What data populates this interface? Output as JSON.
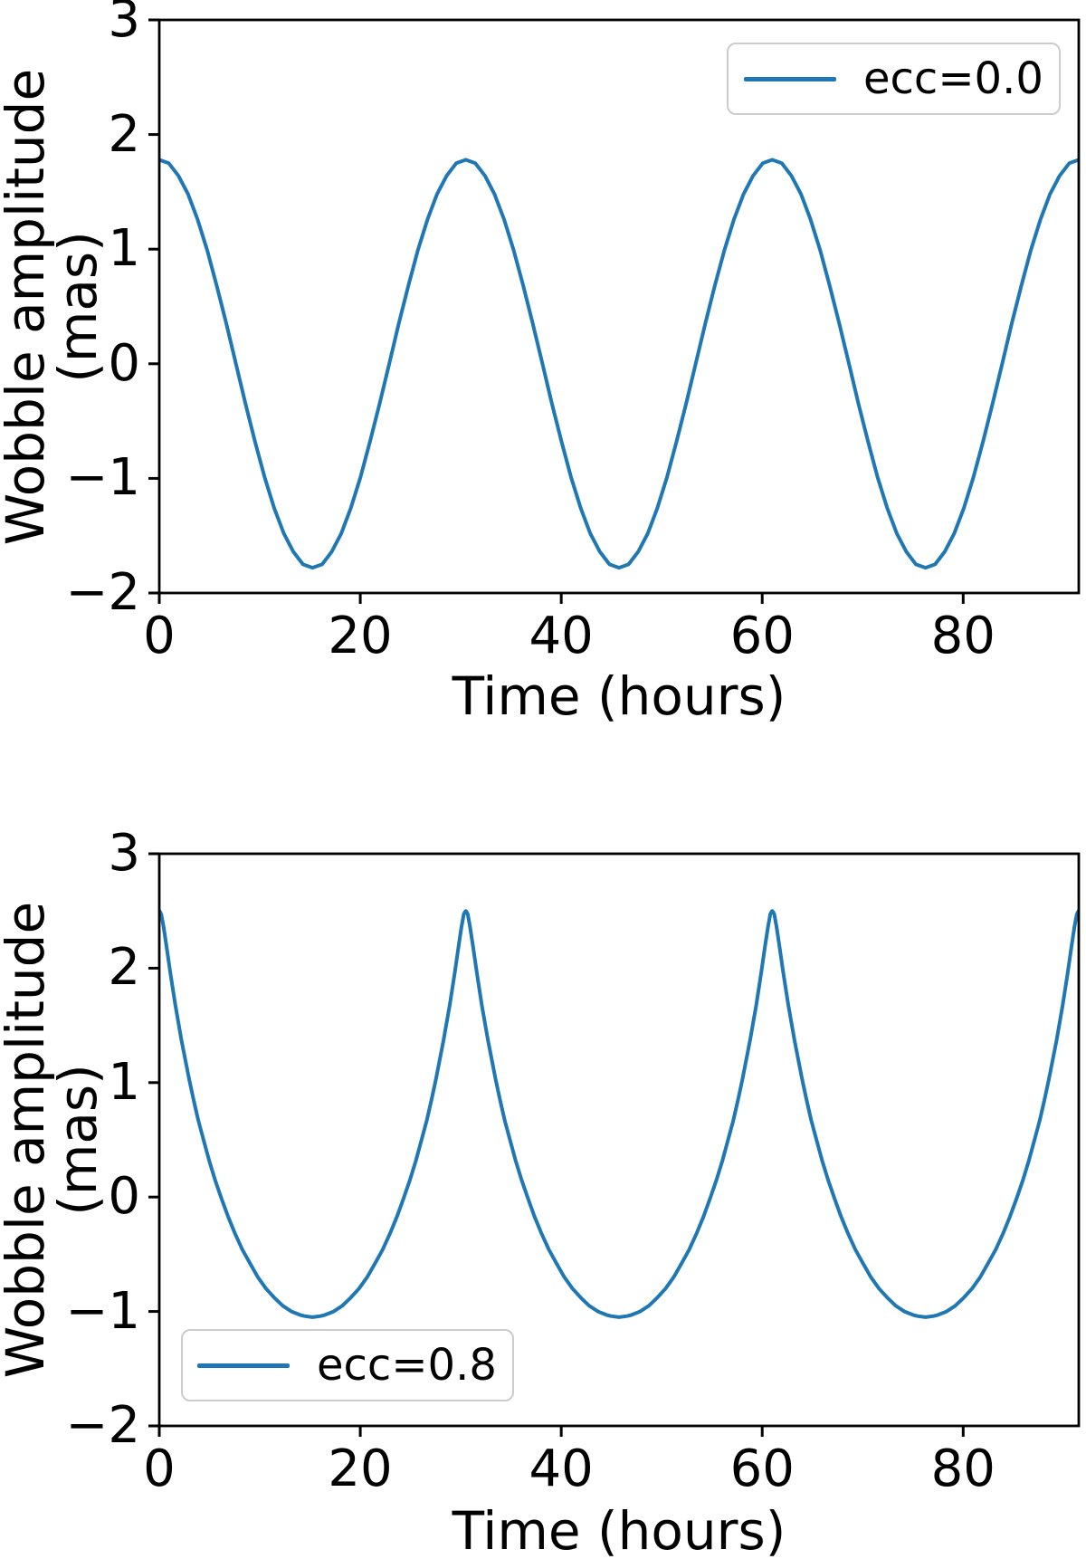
{
  "figure": {
    "background_color": "#ffffff",
    "axis_color": "#000000",
    "accent_color": "#1f77b4"
  },
  "chart_data": [
    {
      "type": "line",
      "panel": "top",
      "title": "",
      "xlabel": "Time (hours)",
      "ylabel": "Wobble amplitude (mas)",
      "xlim": [
        0,
        91.5
      ],
      "ylim": [
        -2,
        3
      ],
      "xticks": [
        0,
        20,
        40,
        60,
        80
      ],
      "yticks": [
        3,
        2,
        1,
        0,
        -1,
        -2
      ],
      "grid": false,
      "legend_position": "upper right",
      "series": [
        {
          "name": "ecc=0.0",
          "color": "#1f77b4",
          "line_width": 4,
          "eccentricity": 0.0,
          "amplitude_mas": 1.78,
          "period_hours": 30.5,
          "period_starts": [
            0,
            30.5,
            61
          ],
          "profile_points": [
            [
              0,
              1.78
            ],
            [
              0.95,
              1.75
            ],
            [
              1.91,
              1.64
            ],
            [
              2.86,
              1.48
            ],
            [
              3.81,
              1.26
            ],
            [
              4.77,
              0.99
            ],
            [
              5.72,
              0.68
            ],
            [
              6.67,
              0.35
            ],
            [
              7.63,
              0.0
            ],
            [
              8.58,
              -0.35
            ],
            [
              9.53,
              -0.68
            ],
            [
              10.48,
              -0.99
            ],
            [
              11.44,
              -1.26
            ],
            [
              12.39,
              -1.48
            ],
            [
              13.34,
              -1.64
            ],
            [
              14.3,
              -1.75
            ],
            [
              15.25,
              -1.78
            ],
            [
              16.2,
              -1.75
            ],
            [
              17.16,
              -1.64
            ],
            [
              18.11,
              -1.48
            ],
            [
              19.06,
              -1.26
            ],
            [
              20.02,
              -0.99
            ],
            [
              20.97,
              -0.68
            ],
            [
              21.92,
              -0.35
            ],
            [
              22.88,
              0.0
            ],
            [
              23.83,
              0.35
            ],
            [
              24.78,
              0.68
            ],
            [
              25.73,
              0.99
            ],
            [
              26.69,
              1.26
            ],
            [
              27.64,
              1.48
            ],
            [
              28.59,
              1.64
            ],
            [
              29.55,
              1.75
            ]
          ],
          "closing_point": [
            91.5,
            1.78
          ]
        }
      ]
    },
    {
      "type": "line",
      "panel": "bottom",
      "title": "",
      "xlabel": "Time (hours)",
      "ylabel": "Wobble amplitude (mas)",
      "xlim": [
        0,
        91.5
      ],
      "ylim": [
        -2,
        3
      ],
      "xticks": [
        0,
        20,
        40,
        60,
        80
      ],
      "yticks": [
        3,
        2,
        1,
        0,
        -1,
        -2
      ],
      "grid": false,
      "legend_position": "lower left",
      "series": [
        {
          "name": "ecc=0.8",
          "color": "#1f77b4",
          "line_width": 4,
          "eccentricity": 0.8,
          "max_mas": 2.5,
          "min_mas": -1.05,
          "period_hours": 30.5,
          "period_starts": [
            0,
            30.5,
            61
          ],
          "profile_points": [
            [
              0,
              2.5
            ],
            [
              0.1,
              2.49
            ],
            [
              0.2,
              2.47
            ],
            [
              0.43,
              2.36
            ],
            [
              0.72,
              2.19
            ],
            [
              1.1,
              1.96
            ],
            [
              1.59,
              1.68
            ],
            [
              2.21,
              1.37
            ],
            [
              2.97,
              1.03
            ],
            [
              3.41,
              0.85
            ],
            [
              3.88,
              0.67
            ],
            [
              4.4,
              0.5
            ],
            [
              4.96,
              0.32
            ],
            [
              5.55,
              0.15
            ],
            [
              6.18,
              -0.01
            ],
            [
              6.84,
              -0.17
            ],
            [
              7.54,
              -0.32
            ],
            [
              8.27,
              -0.46
            ],
            [
              9.03,
              -0.58
            ],
            [
              9.81,
              -0.7
            ],
            [
              10.62,
              -0.8
            ],
            [
              11.45,
              -0.88
            ],
            [
              12.29,
              -0.95
            ],
            [
              13.15,
              -1.0
            ],
            [
              14.01,
              -1.03
            ],
            [
              14.45,
              -1.04
            ],
            [
              15.25,
              -1.05
            ],
            [
              16.05,
              -1.04
            ],
            [
              16.49,
              -1.03
            ],
            [
              17.35,
              -1.0
            ],
            [
              18.21,
              -0.95
            ],
            [
              19.05,
              -0.88
            ],
            [
              19.88,
              -0.8
            ],
            [
              20.69,
              -0.7
            ],
            [
              21.47,
              -0.58
            ],
            [
              22.23,
              -0.46
            ],
            [
              22.96,
              -0.32
            ],
            [
              23.66,
              -0.17
            ],
            [
              24.32,
              -0.01
            ],
            [
              24.95,
              0.15
            ],
            [
              25.54,
              0.32
            ],
            [
              26.1,
              0.5
            ],
            [
              26.62,
              0.67
            ],
            [
              27.09,
              0.85
            ],
            [
              27.53,
              1.03
            ],
            [
              28.29,
              1.37
            ],
            [
              28.91,
              1.68
            ],
            [
              29.4,
              1.96
            ],
            [
              29.78,
              2.19
            ],
            [
              30.07,
              2.36
            ],
            [
              30.3,
              2.47
            ],
            [
              30.4,
              2.49
            ]
          ],
          "closing_point": [
            91.5,
            2.5
          ]
        }
      ]
    }
  ]
}
